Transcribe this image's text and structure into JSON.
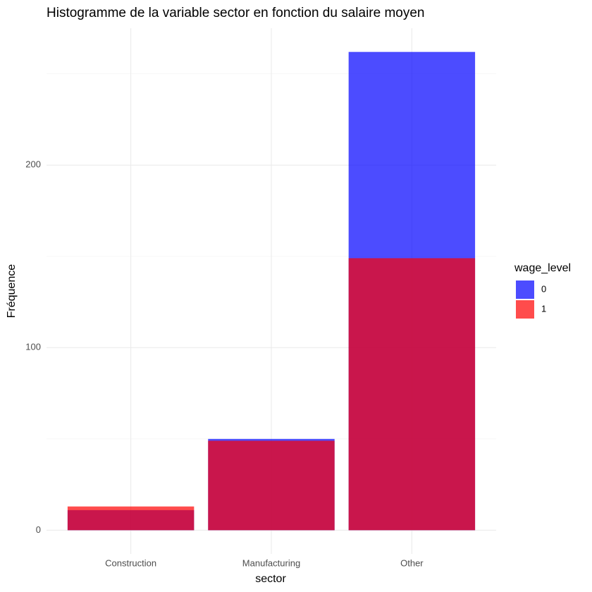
{
  "chart_data": {
    "type": "bar",
    "position": "identity",
    "opacity": 0.7,
    "title": "Histogramme de la variable sector en fonction du salaire moyen",
    "x_label": "sector",
    "y_label": "Fréquence",
    "categories": [
      "Construction",
      "Manufacturing",
      "Other"
    ],
    "series": [
      {
        "name": "0",
        "color": "#0000ff",
        "values": [
          11,
          50,
          262
        ]
      },
      {
        "name": "1",
        "color": "#ff0000",
        "values": [
          13,
          49,
          149
        ]
      }
    ],
    "legend_title": "wage_level",
    "legend_position": "right",
    "ylim": [
      -13,
      275
    ],
    "yticks": [
      0,
      100,
      200
    ],
    "minor_yticks": [
      50,
      150,
      250
    ],
    "grid": true
  }
}
